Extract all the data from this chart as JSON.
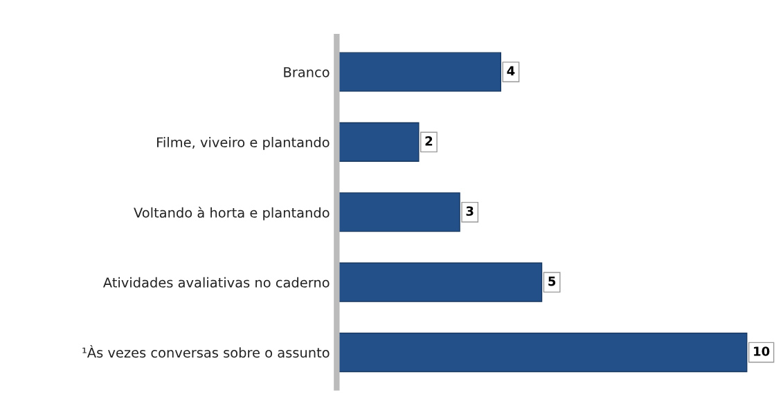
{
  "chart_data": {
    "type": "bar",
    "orientation": "horizontal",
    "categories": [
      "Branco",
      "Filme, viveiro e plantando",
      "Voltando à horta e plantando",
      "Atividades avaliativas no caderno",
      "¹Às vezes conversas sobre o assunto"
    ],
    "values": [
      4,
      2,
      3,
      5,
      10
    ],
    "color": "#24508a",
    "data_labels": true,
    "tick_labels": "y",
    "grid": false,
    "legend": false
  }
}
